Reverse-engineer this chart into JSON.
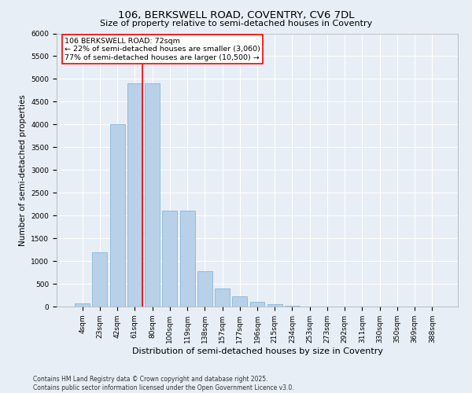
{
  "title_line1": "106, BERKSWELL ROAD, COVENTRY, CV6 7DL",
  "title_line2": "Size of property relative to semi-detached houses in Coventry",
  "xlabel": "Distribution of semi-detached houses by size in Coventry",
  "ylabel": "Number of semi-detached properties",
  "categories": [
    "4sqm",
    "23sqm",
    "42sqm",
    "61sqm",
    "80sqm",
    "100sqm",
    "119sqm",
    "138sqm",
    "157sqm",
    "177sqm",
    "196sqm",
    "215sqm",
    "234sqm",
    "253sqm",
    "273sqm",
    "292sqm",
    "311sqm",
    "330sqm",
    "350sqm",
    "369sqm",
    "388sqm"
  ],
  "values": [
    70,
    1200,
    4000,
    4900,
    4900,
    2100,
    2100,
    780,
    400,
    220,
    110,
    50,
    25,
    8,
    4,
    2,
    1,
    0,
    0,
    0,
    0
  ],
  "bar_color": "#b8d0e8",
  "bar_edgecolor": "#7aafd4",
  "vline_color": "red",
  "vline_bin_index": 3,
  "annotation_text": "106 BERKSWELL ROAD: 72sqm\n← 22% of semi-detached houses are smaller (3,060)\n77% of semi-detached houses are larger (10,500) →",
  "annotation_box_facecolor": "white",
  "annotation_box_edgecolor": "red",
  "ylim": [
    0,
    6000
  ],
  "yticks": [
    0,
    500,
    1000,
    1500,
    2000,
    2500,
    3000,
    3500,
    4000,
    4500,
    5000,
    5500,
    6000
  ],
  "footer_line1": "Contains HM Land Registry data © Crown copyright and database right 2025.",
  "footer_line2": "Contains public sector information licensed under the Open Government Licence v3.0.",
  "bg_color": "#e8eef5",
  "plot_bg_color": "#e8eef5",
  "grid_color": "white",
  "title1_fontsize": 9.5,
  "title2_fontsize": 8,
  "tick_fontsize": 6.5,
  "ylabel_fontsize": 7.5,
  "xlabel_fontsize": 8,
  "annot_fontsize": 6.8,
  "footer_fontsize": 5.5
}
